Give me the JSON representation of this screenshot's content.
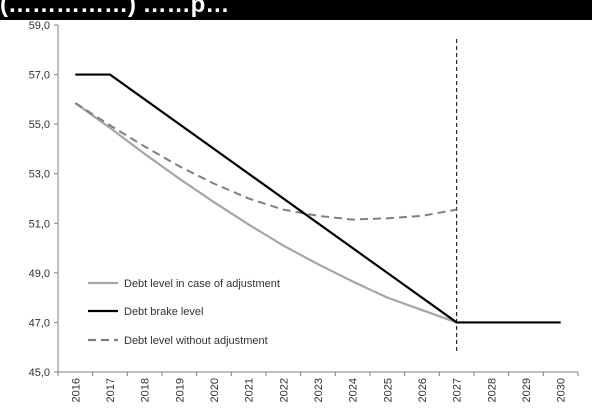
{
  "header": {
    "partial_title": "(……………) ……p…"
  },
  "chart_data": {
    "type": "line",
    "title": "",
    "xlabel": "",
    "ylabel": "",
    "x": [
      "2016",
      "2017",
      "2018",
      "2019",
      "2020",
      "2021",
      "2022",
      "2023",
      "2024",
      "2025",
      "2026",
      "2027",
      "2028",
      "2029",
      "2030"
    ],
    "xlim": [
      2015.5,
      2030.5
    ],
    "ylim": [
      45.0,
      59.0
    ],
    "yticks": [
      "45,0",
      "47,0",
      "49,0",
      "51,0",
      "53,0",
      "55,0",
      "57,0",
      "59,0"
    ],
    "yticks_values": [
      45,
      47,
      49,
      51,
      53,
      55,
      57,
      59
    ],
    "grid": false,
    "vertical_reference_line": {
      "x": 2027,
      "style": "dashed",
      "color": "#000000"
    },
    "legend_position": "bottom-left",
    "series": [
      {
        "name": "Debt level in case of adjustment",
        "color": "#a6a6a6",
        "style": "solid",
        "points": [
          [
            2016,
            55.85
          ],
          [
            2017,
            54.85
          ],
          [
            2018,
            53.8
          ],
          [
            2019,
            52.8
          ],
          [
            2020,
            51.85
          ],
          [
            2021,
            50.95
          ],
          [
            2022,
            50.1
          ],
          [
            2023,
            49.35
          ],
          [
            2024,
            48.65
          ],
          [
            2025,
            48.0
          ],
          [
            2026,
            47.5
          ],
          [
            2027,
            47.0
          ]
        ]
      },
      {
        "name": "Debt brake level",
        "color": "#000000",
        "style": "solid",
        "points": [
          [
            2016,
            57.0
          ],
          [
            2017,
            57.0
          ],
          [
            2027,
            47.0
          ],
          [
            2030,
            47.0
          ]
        ]
      },
      {
        "name": "Debt level without adjustment",
        "color": "#808080",
        "style": "dashed",
        "points": [
          [
            2016,
            55.85
          ],
          [
            2017,
            54.95
          ],
          [
            2018,
            54.1
          ],
          [
            2019,
            53.3
          ],
          [
            2020,
            52.6
          ],
          [
            2021,
            52.0
          ],
          [
            2022,
            51.55
          ],
          [
            2023,
            51.3
          ],
          [
            2024,
            51.15
          ],
          [
            2025,
            51.2
          ],
          [
            2026,
            51.3
          ],
          [
            2027,
            51.55
          ]
        ]
      }
    ]
  }
}
